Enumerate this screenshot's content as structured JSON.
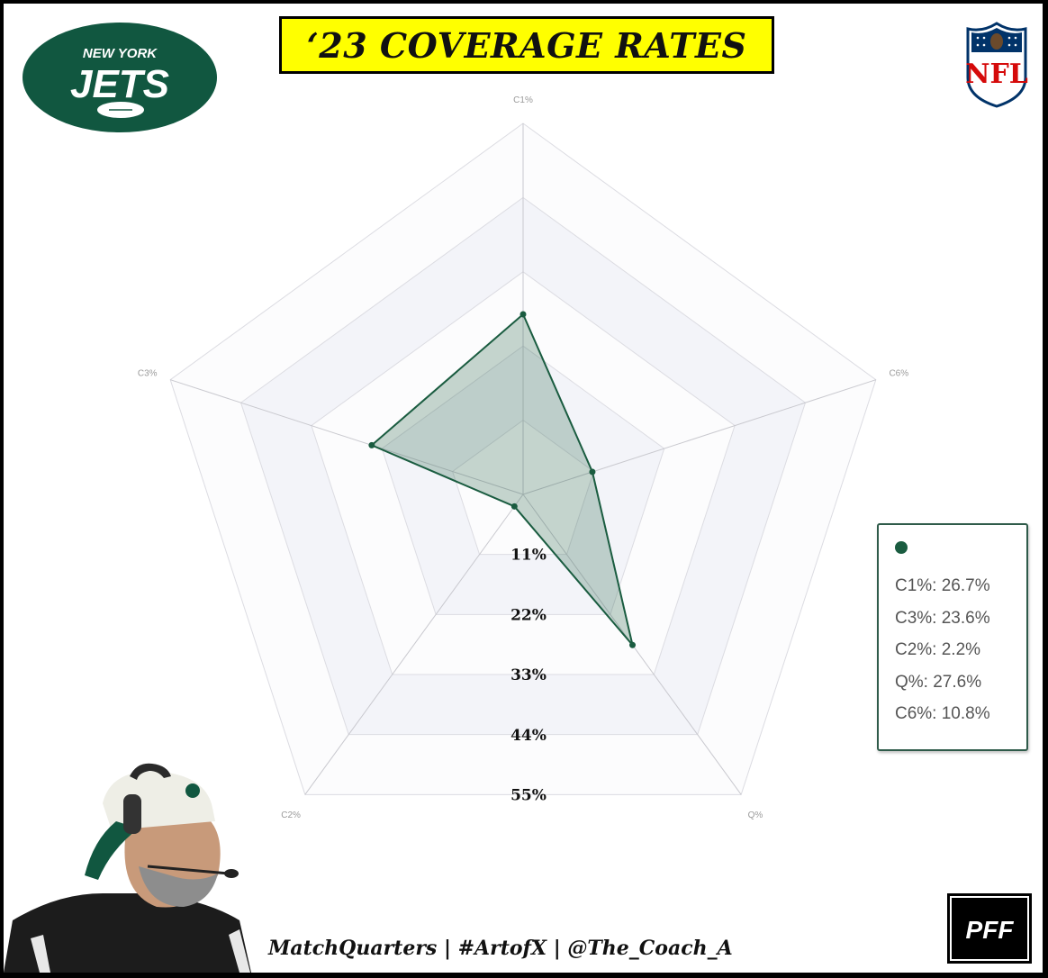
{
  "header": {
    "title": "‘23 COVERAGE RATES"
  },
  "branding": {
    "team_logo_icon": "new-york-jets-logo",
    "team_logo_text_top": "NEW YORK",
    "team_logo_text_main": "JETS",
    "league_logo_icon": "nfl-shield-logo",
    "league_logo_text": "NFL",
    "data_logo_icon": "pff-logo",
    "data_logo_text": "PFF",
    "coach_photo_icon": "coach-photo"
  },
  "colors": {
    "jets_green": "#115740",
    "series_green": "#1a5c40",
    "title_bg": "#ffff00"
  },
  "chart_data": {
    "type": "radar",
    "axes": [
      "C1%",
      "C6%",
      "Q%",
      "C2%",
      "C3%"
    ],
    "series": [
      {
        "values": [
          26.7,
          10.8,
          27.6,
          2.2,
          23.6
        ]
      }
    ],
    "rings": [
      "11%",
      "22%",
      "33%",
      "44%",
      "55%"
    ],
    "ring_values": [
      11,
      22,
      33,
      44,
      55
    ],
    "rmax": 55,
    "grid": true,
    "legend_position": "right"
  },
  "legend": {
    "entries": [
      "C1%: 26.7%",
      "C3%: 23.6%",
      "C2%: 2.2%",
      "Q%: 27.6%",
      "C6%: 10.8%"
    ]
  },
  "footer": {
    "credits": "MatchQuarters | #ArtofX | @The_Coach_A"
  }
}
